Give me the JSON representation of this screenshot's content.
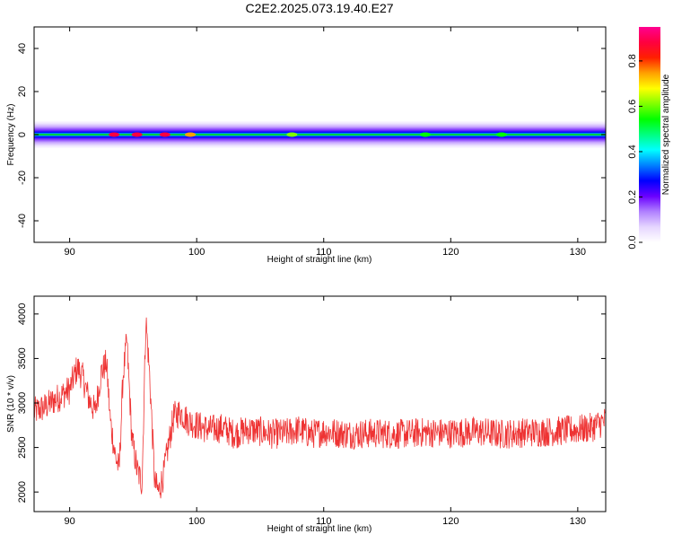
{
  "title": "C2E2.2025.073.19.40.E27",
  "colorbar": {
    "label": "Normalized spectral amplitude",
    "ticks": [
      0.0,
      0.2,
      0.4,
      0.6,
      0.8
    ],
    "tick_labels": [
      "0.0",
      "0.2",
      "0.4",
      "0.6",
      "0.8"
    ],
    "range": [
      0.0,
      0.95
    ],
    "colors": [
      "#ffffff",
      "#e6d6ff",
      "#b080ff",
      "#6a00ff",
      "#0000ff",
      "#0080ff",
      "#00ffff",
      "#00ff80",
      "#00ff00",
      "#80ff00",
      "#ffff00",
      "#ffa000",
      "#ff2000",
      "#ff0040",
      "#ff0090"
    ]
  },
  "chart_data": [
    {
      "type": "heatmap",
      "title": "",
      "xlabel": "Height of straight line (km)",
      "ylabel": "Frequency (Hz)",
      "xlim": [
        87.2,
        132.2
      ],
      "ylim": [
        -50,
        50
      ],
      "x_ticks": [
        90,
        100,
        110,
        120,
        130
      ],
      "y_ticks": [
        -40,
        -20,
        0,
        20,
        40
      ],
      "x_tick_labels": [
        "90",
        "100",
        "110",
        "120",
        "130"
      ],
      "y_tick_labels": [
        "-40",
        "-20",
        "0",
        "20",
        "40"
      ],
      "band_center_hz": 0,
      "band_halfwidth_hz": 5,
      "peaks": [
        {
          "x": 93.5,
          "value": 0.85
        },
        {
          "x": 95.3,
          "value": 0.9
        },
        {
          "x": 97.5,
          "value": 0.9
        },
        {
          "x": 99.5,
          "value": 0.75
        },
        {
          "x": 107.5,
          "value": 0.6
        },
        {
          "x": 118.0,
          "value": 0.55
        },
        {
          "x": 124.0,
          "value": 0.55
        }
      ],
      "background_value": 0.45
    },
    {
      "type": "line",
      "title": "",
      "xlabel": "Height of straight line (km)",
      "ylabel": "SNR (10 * v/v)",
      "xlim": [
        87.2,
        132.2
      ],
      "ylim": [
        1780,
        4200
      ],
      "x_ticks": [
        90,
        100,
        110,
        120,
        130
      ],
      "y_ticks": [
        2000,
        2500,
        3000,
        3500,
        4000
      ],
      "x_tick_labels": [
        "90",
        "100",
        "110",
        "120",
        "130"
      ],
      "y_tick_labels": [
        "2000",
        "2500",
        "3000",
        "3500",
        "4000"
      ],
      "color": "#ee3333",
      "series": [
        {
          "x": [
            87.2,
            88,
            89,
            90,
            90.6,
            91,
            91.5,
            92,
            92.5,
            92.9,
            93.2,
            93.6,
            93.9,
            94.2,
            94.5,
            94.9,
            95.3,
            95.7,
            96.0,
            96.3,
            96.7,
            97.0,
            97.4,
            97.8,
            98.2,
            98.7,
            99.3,
            100,
            101,
            102,
            103,
            104,
            105,
            106,
            107,
            108,
            109,
            110,
            112,
            114,
            116,
            118,
            120,
            122,
            124,
            126,
            128,
            130,
            131,
            132.2
          ],
          "y": [
            2900,
            2950,
            3050,
            3150,
            3400,
            3300,
            3050,
            2900,
            3350,
            3450,
            2800,
            2400,
            2250,
            3300,
            3700,
            2600,
            2250,
            2100,
            3950,
            3300,
            2100,
            2000,
            2200,
            2550,
            2850,
            2900,
            2800,
            2750,
            2700,
            2720,
            2650,
            2700,
            2680,
            2650,
            2660,
            2700,
            2650,
            2680,
            2650,
            2660,
            2650,
            2670,
            2660,
            2680,
            2650,
            2670,
            2680,
            2700,
            2720,
            2800
          ]
        }
      ]
    }
  ]
}
